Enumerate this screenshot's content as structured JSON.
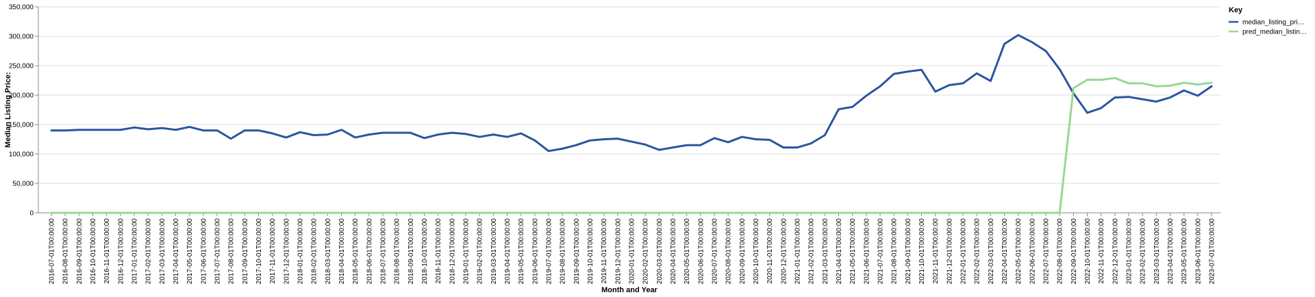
{
  "chart_data": {
    "type": "line",
    "xlabel": "Month and Year",
    "ylabel": "Median Listing Price:",
    "ylim": [
      0,
      350000
    ],
    "yticks": [
      "0",
      "50,000",
      "100,000",
      "150,000",
      "200,000",
      "250,000",
      "300,000",
      "350,000"
    ],
    "grid": true,
    "legend": {
      "title": "Key",
      "placement": "right"
    },
    "x": [
      "2016-07-01T00:00:00",
      "2016-08-01T00:00:00",
      "2016-09-01T00:00:00",
      "2016-10-01T00:00:00",
      "2016-11-01T00:00:00",
      "2016-12-01T00:00:00",
      "2017-01-01T00:00:00",
      "2017-02-01T00:00:00",
      "2017-03-01T00:00:00",
      "2017-04-01T00:00:00",
      "2017-05-01T00:00:00",
      "2017-06-01T00:00:00",
      "2017-07-01T00:00:00",
      "2017-08-01T00:00:00",
      "2017-09-01T00:00:00",
      "2017-10-01T00:00:00",
      "2017-11-01T00:00:00",
      "2017-12-01T00:00:00",
      "2018-01-01T00:00:00",
      "2018-02-01T00:00:00",
      "2018-03-01T00:00:00",
      "2018-04-01T00:00:00",
      "2018-05-01T00:00:00",
      "2018-06-01T00:00:00",
      "2018-07-01T00:00:00",
      "2018-08-01T00:00:00",
      "2018-09-01T00:00:00",
      "2018-10-01T00:00:00",
      "2018-11-01T00:00:00",
      "2018-12-01T00:00:00",
      "2019-01-01T00:00:00",
      "2019-02-01T00:00:00",
      "2019-03-01T00:00:00",
      "2019-04-01T00:00:00",
      "2019-05-01T00:00:00",
      "2019-06-01T00:00:00",
      "2019-07-01T00:00:00",
      "2019-08-01T00:00:00",
      "2019-09-01T00:00:00",
      "2019-10-01T00:00:00",
      "2019-11-01T00:00:00",
      "2019-12-01T00:00:00",
      "2020-01-01T00:00:00",
      "2020-02-01T00:00:00",
      "2020-03-01T00:00:00",
      "2020-04-01T00:00:00",
      "2020-05-01T00:00:00",
      "2020-06-01T00:00:00",
      "2020-07-01T00:00:00",
      "2020-08-01T00:00:00",
      "2020-09-01T00:00:00",
      "2020-10-01T00:00:00",
      "2020-11-01T00:00:00",
      "2020-12-01T00:00:00",
      "2021-01-01T00:00:00",
      "2021-02-01T00:00:00",
      "2021-03-01T00:00:00",
      "2021-04-01T00:00:00",
      "2021-05-01T00:00:00",
      "2021-06-01T00:00:00",
      "2021-07-01T00:00:00",
      "2021-08-01T00:00:00",
      "2021-09-01T00:00:00",
      "2021-10-01T00:00:00",
      "2021-11-01T00:00:00",
      "2021-12-01T00:00:00",
      "2022-01-01T00:00:00",
      "2022-02-01T00:00:00",
      "2022-03-01T00:00:00",
      "2022-04-01T00:00:00",
      "2022-05-01T00:00:00",
      "2022-06-01T00:00:00",
      "2022-07-01T00:00:00",
      "2022-08-01T00:00:00",
      "2022-09-01T00:00:00",
      "2022-10-01T00:00:00",
      "2022-11-01T00:00:00",
      "2022-12-01T00:00:00",
      "2023-01-01T00:00:00",
      "2023-02-01T00:00:00",
      "2023-03-01T00:00:00",
      "2023-04-01T00:00:00",
      "2023-05-01T00:00:00",
      "2023-06-01T00:00:00",
      "2023-07-01T00:00:00"
    ],
    "series": [
      {
        "name": "median_listing_pri…",
        "color": "#2a55a0",
        "values": [
          140000,
          140000,
          141000,
          141000,
          141000,
          141000,
          145000,
          142000,
          144000,
          141000,
          146000,
          140000,
          140000,
          126000,
          140000,
          140000,
          135000,
          128000,
          137000,
          132000,
          133000,
          141000,
          128000,
          133000,
          136000,
          136000,
          136000,
          127000,
          133000,
          136000,
          134000,
          129000,
          133000,
          129000,
          135000,
          123000,
          105000,
          109000,
          115000,
          123000,
          125000,
          126000,
          121000,
          116000,
          107000,
          111000,
          115000,
          115000,
          127000,
          120000,
          129000,
          125000,
          124000,
          111000,
          111000,
          118000,
          132000,
          176000,
          180000,
          199000,
          215000,
          236000,
          240000,
          243000,
          206000,
          217000,
          220000,
          237000,
          224000,
          287000,
          302000,
          290000,
          275000,
          244000,
          203000,
          170000,
          178000,
          196000,
          197000,
          193000,
          189000,
          196000,
          208000,
          199000,
          215000
        ]
      },
      {
        "name": "pred_median_listin…",
        "color": "#98d894",
        "values": [
          0,
          0,
          0,
          0,
          0,
          0,
          0,
          0,
          0,
          0,
          0,
          0,
          0,
          0,
          0,
          0,
          0,
          0,
          0,
          0,
          0,
          0,
          0,
          0,
          0,
          0,
          0,
          0,
          0,
          0,
          0,
          0,
          0,
          0,
          0,
          0,
          0,
          0,
          0,
          0,
          0,
          0,
          0,
          0,
          0,
          0,
          0,
          0,
          0,
          0,
          0,
          0,
          0,
          0,
          0,
          0,
          0,
          0,
          0,
          0,
          0,
          0,
          0,
          0,
          0,
          0,
          0,
          0,
          0,
          0,
          0,
          0,
          0,
          0,
          212000,
          226000,
          226000,
          229000,
          220000,
          220000,
          215000,
          216000,
          221000,
          218000,
          221000
        ]
      }
    ]
  }
}
